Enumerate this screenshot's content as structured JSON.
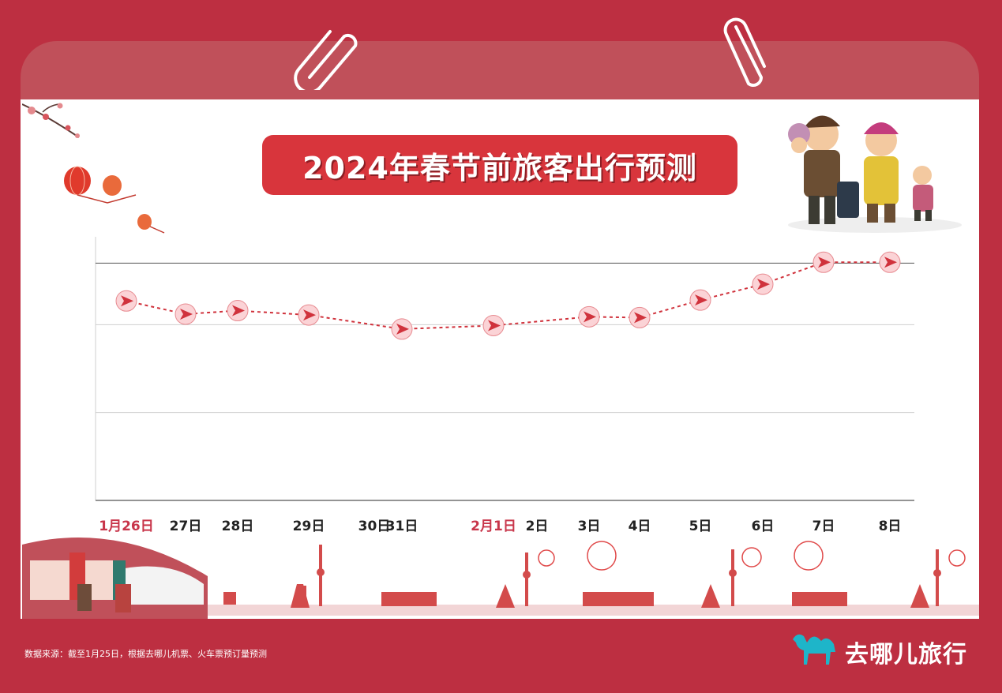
{
  "title": "2024年春节前旅客出行预测",
  "source_note": "数据来源：截至1月25日，根据去哪儿机票、火车票预订量预测",
  "brand": {
    "name": "去哪儿旅行",
    "logo_icon": "camel-icon",
    "color": "#1eb5c9"
  },
  "colors": {
    "background": "#bd2f41",
    "title_pill": "#d8353c",
    "line": "#d0323c",
    "marker_fill": "#fbd3d6",
    "highlight_label": "#c8354a"
  },
  "chart_data": {
    "type": "line",
    "categories": [
      "1月26日",
      "27日",
      "28日",
      "29日",
      "30日",
      "31日",
      "2月1日",
      "2日",
      "3日",
      "4日",
      "5日",
      "6日",
      "7日",
      "8日"
    ],
    "highlighted_categories": [
      "1月26日",
      "2月1日"
    ],
    "values": [
      2.27,
      2.12,
      2.16,
      2.11,
      null,
      1.95,
      1.99,
      null,
      2.09,
      2.08,
      2.28,
      2.46,
      2.71,
      2.71
    ],
    "ylim": [
      0,
      3.0
    ],
    "grid": true,
    "legend": "none",
    "marker": "arrow-in-circle",
    "line_style": "dashed",
    "title": "2024年春节前旅客出行预测",
    "xlabel": "",
    "ylabel": ""
  }
}
